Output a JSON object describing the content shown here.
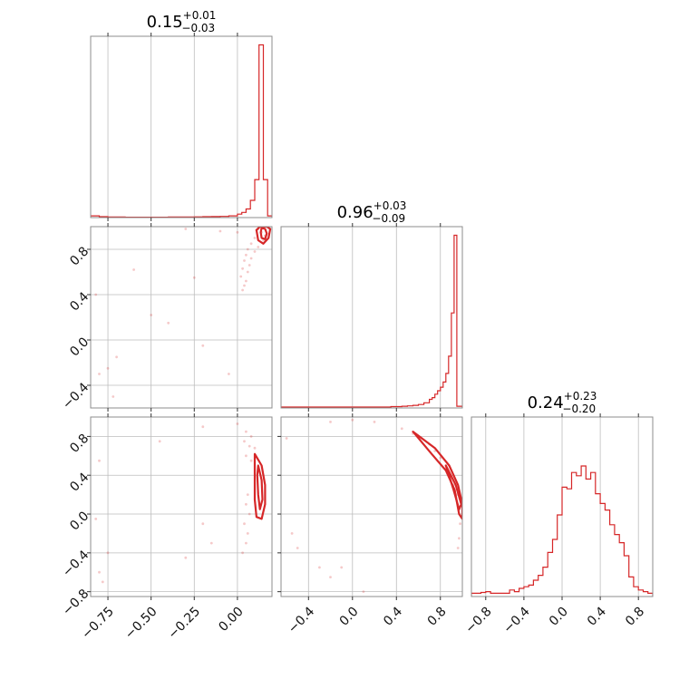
{
  "chart_data": {
    "type": "corner",
    "accent_color": "#d62728",
    "grid": true,
    "panels": [
      {
        "id": "hist-0",
        "type": "histogram",
        "title": {
          "main": "0.15",
          "plus": "+0.01",
          "minus": "−0.03"
        },
        "xlim": [
          -0.85,
          0.2
        ],
        "ylim": [
          0,
          1.05
        ],
        "edges": [
          -0.85,
          -0.8,
          -0.75,
          -0.7,
          -0.65,
          -0.6,
          -0.55,
          -0.5,
          -0.45,
          -0.4,
          -0.35,
          -0.3,
          -0.25,
          -0.2,
          -0.15,
          -0.1,
          -0.05,
          0.0,
          0.025,
          0.05,
          0.075,
          0.1,
          0.125,
          0.15,
          0.175,
          0.2
        ],
        "counts": [
          0.01,
          0.005,
          0.003,
          0.003,
          0.002,
          0.002,
          0.002,
          0.002,
          0.002,
          0.003,
          0.003,
          0.003,
          0.004,
          0.005,
          0.006,
          0.007,
          0.01,
          0.02,
          0.03,
          0.05,
          0.1,
          0.22,
          1.0,
          0.22,
          0.01
        ]
      },
      {
        "id": "hist-1",
        "type": "histogram",
        "title": {
          "main": "0.96",
          "plus": "+0.03",
          "minus": "−0.09"
        },
        "xlim": [
          -0.65,
          1.0
        ],
        "ylim": [
          0,
          1.05
        ],
        "edges": [
          -0.65,
          -0.6,
          -0.55,
          -0.5,
          -0.45,
          -0.4,
          -0.35,
          -0.3,
          -0.25,
          -0.2,
          -0.15,
          -0.1,
          -0.05,
          0.0,
          0.05,
          0.1,
          0.15,
          0.2,
          0.25,
          0.3,
          0.35,
          0.4,
          0.45,
          0.5,
          0.55,
          0.6,
          0.65,
          0.7,
          0.725,
          0.75,
          0.775,
          0.8,
          0.825,
          0.85,
          0.875,
          0.9,
          0.925,
          0.95,
          0.975,
          1.0
        ],
        "counts": [
          0.005,
          0.005,
          0.005,
          0.005,
          0.005,
          0.005,
          0.005,
          0.005,
          0.005,
          0.005,
          0.005,
          0.005,
          0.005,
          0.005,
          0.005,
          0.005,
          0.005,
          0.005,
          0.005,
          0.005,
          0.008,
          0.008,
          0.01,
          0.012,
          0.015,
          0.02,
          0.03,
          0.05,
          0.06,
          0.08,
          0.1,
          0.12,
          0.15,
          0.2,
          0.3,
          0.55,
          1.0,
          0.01,
          0.01
        ]
      },
      {
        "id": "hist-2",
        "type": "histogram",
        "title": {
          "main": "0.24",
          "plus": "+0.23",
          "minus": "−0.20"
        },
        "xlim": [
          -0.95,
          0.95
        ],
        "ylim": [
          0,
          1.1
        ],
        "edges": [
          -0.95,
          -0.9,
          -0.85,
          -0.8,
          -0.75,
          -0.7,
          -0.65,
          -0.6,
          -0.55,
          -0.5,
          -0.45,
          -0.4,
          -0.35,
          -0.3,
          -0.25,
          -0.2,
          -0.15,
          -0.1,
          -0.05,
          0.0,
          0.05,
          0.1,
          0.15,
          0.2,
          0.25,
          0.3,
          0.35,
          0.4,
          0.45,
          0.5,
          0.55,
          0.6,
          0.65,
          0.7,
          0.75,
          0.8,
          0.85,
          0.9,
          0.95
        ],
        "counts": [
          0.02,
          0.02,
          0.025,
          0.03,
          0.02,
          0.02,
          0.02,
          0.02,
          0.04,
          0.03,
          0.05,
          0.06,
          0.07,
          0.1,
          0.13,
          0.18,
          0.27,
          0.35,
          0.5,
          0.67,
          0.66,
          0.76,
          0.74,
          0.8,
          0.72,
          0.76,
          0.63,
          0.57,
          0.53,
          0.44,
          0.38,
          0.33,
          0.25,
          0.12,
          0.06,
          0.04,
          0.03,
          0.02
        ]
      },
      {
        "id": "scatter-1-0",
        "type": "scatter-contour",
        "xlim": [
          -0.85,
          0.2
        ],
        "ylim": [
          -0.6,
          1.0
        ],
        "points": [
          [
            0.12,
            0.98
          ],
          [
            0.14,
            0.95
          ],
          [
            0.16,
            0.92
          ],
          [
            0.1,
            0.9
          ],
          [
            0.15,
            0.88
          ],
          [
            0.08,
            0.85
          ],
          [
            0.12,
            0.82
          ],
          [
            0.06,
            0.8
          ],
          [
            0.1,
            0.78
          ],
          [
            0.05,
            0.75
          ],
          [
            0.08,
            0.72
          ],
          [
            0.04,
            0.7
          ],
          [
            0.07,
            0.66
          ],
          [
            0.03,
            0.63
          ],
          [
            0.06,
            0.6
          ],
          [
            0.02,
            0.56
          ],
          [
            0.05,
            0.52
          ],
          [
            0.04,
            0.48
          ],
          [
            0.03,
            0.44
          ],
          [
            -0.3,
            0.98
          ],
          [
            -0.1,
            0.96
          ],
          [
            -0.6,
            0.62
          ],
          [
            -0.5,
            0.22
          ],
          [
            -0.4,
            0.15
          ],
          [
            -0.2,
            -0.05
          ],
          [
            -0.7,
            -0.15
          ],
          [
            -0.75,
            -0.25
          ],
          [
            -0.8,
            -0.3
          ],
          [
            -0.72,
            -0.5
          ],
          [
            -0.05,
            -0.3
          ],
          [
            -0.82,
            0.4
          ],
          [
            -0.25,
            0.55
          ],
          [
            0.0,
            0.95
          ],
          [
            0.18,
            0.99
          ],
          [
            0.11,
            0.97
          ]
        ],
        "contours": [
          [
            [
              0.11,
              0.97
            ],
            [
              0.12,
              0.88
            ],
            [
              0.15,
              0.85
            ],
            [
              0.18,
              0.9
            ],
            [
              0.19,
              0.98
            ],
            [
              0.17,
              1.0
            ],
            [
              0.13,
              1.0
            ]
          ],
          [
            [
              0.135,
              0.95
            ],
            [
              0.14,
              0.9
            ],
            [
              0.16,
              0.89
            ],
            [
              0.17,
              0.94
            ],
            [
              0.16,
              0.98
            ],
            [
              0.14,
              0.99
            ]
          ]
        ]
      },
      {
        "id": "scatter-2-0",
        "type": "scatter-contour",
        "xlim": [
          -0.85,
          0.2
        ],
        "ylim": [
          -0.85,
          1.0
        ],
        "points": [
          [
            0.05,
            0.85
          ],
          [
            0.08,
            0.8
          ],
          [
            0.04,
            0.75
          ],
          [
            0.07,
            0.7
          ],
          [
            0.1,
            0.68
          ],
          [
            0.05,
            0.6
          ],
          [
            0.08,
            0.55
          ],
          [
            0.06,
            0.2
          ],
          [
            0.05,
            0.1
          ],
          [
            0.07,
            0.0
          ],
          [
            0.04,
            -0.1
          ],
          [
            0.06,
            -0.2
          ],
          [
            0.05,
            -0.3
          ],
          [
            0.03,
            -0.4
          ],
          [
            -0.2,
            0.9
          ],
          [
            -0.45,
            0.75
          ],
          [
            -0.8,
            0.55
          ],
          [
            -0.82,
            -0.05
          ],
          [
            -0.75,
            -0.4
          ],
          [
            -0.8,
            -0.6
          ],
          [
            -0.78,
            -0.7
          ],
          [
            -0.3,
            -0.45
          ],
          [
            -0.2,
            -0.1
          ],
          [
            -0.15,
            -0.3
          ],
          [
            0.0,
            0.93
          ]
        ],
        "contours": [
          [
            [
              0.1,
              0.62
            ],
            [
              0.14,
              0.5
            ],
            [
              0.16,
              0.3
            ],
            [
              0.16,
              0.1
            ],
            [
              0.14,
              -0.05
            ],
            [
              0.11,
              -0.03
            ],
            [
              0.1,
              0.15
            ],
            [
              0.1,
              0.4
            ]
          ],
          [
            [
              0.12,
              0.5
            ],
            [
              0.14,
              0.35
            ],
            [
              0.145,
              0.15
            ],
            [
              0.13,
              0.05
            ],
            [
              0.12,
              0.2
            ],
            [
              0.115,
              0.4
            ]
          ]
        ]
      },
      {
        "id": "scatter-2-1",
        "type": "scatter-contour",
        "xlim": [
          -0.65,
          1.0
        ],
        "ylim": [
          -0.85,
          1.0
        ],
        "points": [
          [
            -0.6,
            0.78
          ],
          [
            -0.5,
            -0.35
          ],
          [
            -0.55,
            -0.2
          ],
          [
            -0.3,
            -0.55
          ],
          [
            -0.2,
            -0.65
          ],
          [
            -0.2,
            0.95
          ],
          [
            0.0,
            0.97
          ],
          [
            0.2,
            0.95
          ],
          [
            0.45,
            0.88
          ],
          [
            0.55,
            0.83
          ],
          [
            0.62,
            0.78
          ],
          [
            0.7,
            0.72
          ],
          [
            0.75,
            0.65
          ],
          [
            0.8,
            0.58
          ],
          [
            0.85,
            0.5
          ],
          [
            0.88,
            0.42
          ],
          [
            0.92,
            0.3
          ],
          [
            0.95,
            0.2
          ],
          [
            0.97,
            0.05
          ],
          [
            0.98,
            -0.1
          ],
          [
            0.97,
            -0.25
          ],
          [
            0.96,
            -0.35
          ],
          [
            -0.1,
            -0.55
          ],
          [
            0.1,
            -0.8
          ]
        ],
        "contours": [
          [
            [
              0.55,
              0.85
            ],
            [
              0.75,
              0.68
            ],
            [
              0.88,
              0.5
            ],
            [
              0.96,
              0.3
            ],
            [
              1.0,
              0.1
            ],
            [
              1.0,
              -0.05
            ],
            [
              0.97,
              0.0
            ],
            [
              0.93,
              0.25
            ],
            [
              0.85,
              0.45
            ],
            [
              0.72,
              0.62
            ]
          ],
          [
            [
              0.85,
              0.5
            ],
            [
              0.94,
              0.3
            ],
            [
              0.99,
              0.1
            ],
            [
              0.97,
              0.05
            ],
            [
              0.92,
              0.25
            ]
          ]
        ]
      }
    ],
    "axes": {
      "x0_ticks": [
        "−0.75",
        "−0.50",
        "−0.25",
        "0.00"
      ],
      "x0_tick_values": [
        -0.75,
        -0.5,
        -0.25,
        0.0
      ],
      "x1_ticks": [
        "−0.4",
        "0.0",
        "0.4",
        "0.8"
      ],
      "x1_tick_values": [
        -0.4,
        0.0,
        0.4,
        0.8
      ],
      "x2_ticks": [
        "−0.8",
        "−0.4",
        "0.0",
        "0.4",
        "0.8"
      ],
      "x2_tick_values": [
        -0.8,
        -0.4,
        0.0,
        0.4,
        0.8
      ],
      "y1_ticks": [
        "−0.4",
        "0.0",
        "0.4",
        "0.8"
      ],
      "y1_tick_values": [
        -0.4,
        0.0,
        0.4,
        0.8
      ],
      "y2_ticks": [
        "−0.8",
        "−0.4",
        "0.0",
        "0.4",
        "0.8"
      ],
      "y2_tick_values": [
        -0.8,
        -0.4,
        0.0,
        0.4,
        0.8
      ]
    }
  }
}
